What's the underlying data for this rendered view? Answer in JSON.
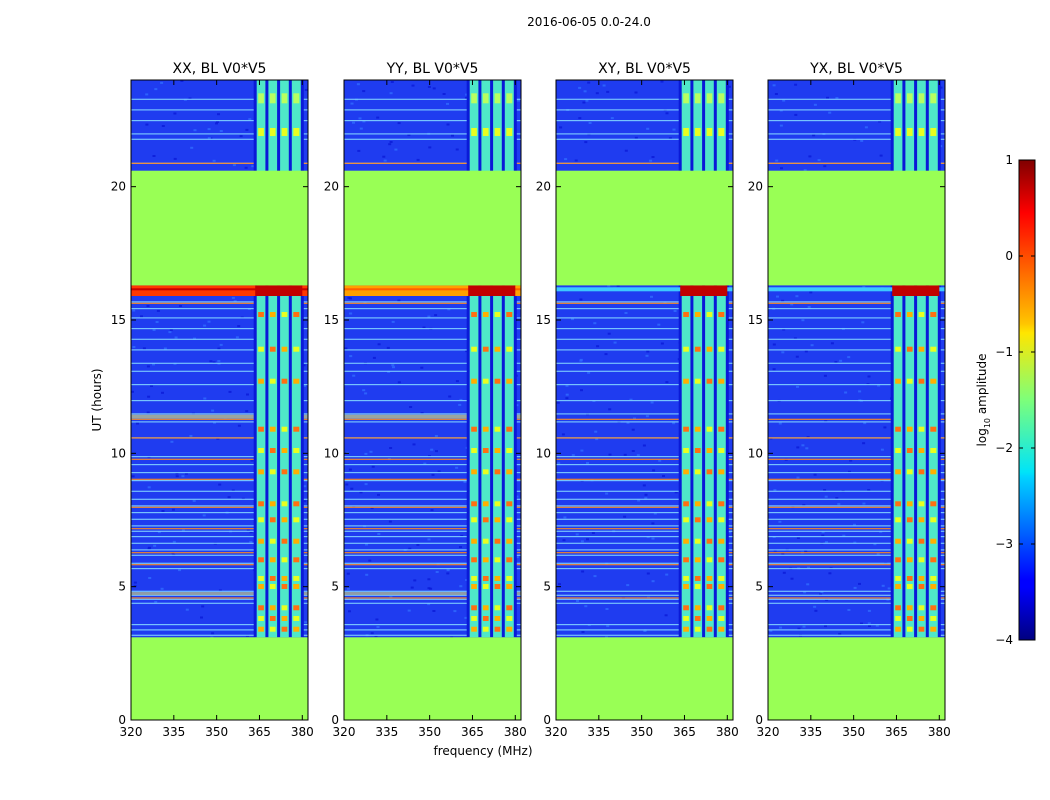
{
  "suptitle": "2016-06-05 0.0-24.0",
  "xlabel": "frequency (MHz)",
  "ylabel": "UT (hours)",
  "colorbar": {
    "label": "log",
    "label_sub": "10",
    "label_rest": " amplitude",
    "range": [
      -4,
      1
    ],
    "ticks": [
      "1",
      "0",
      "−1",
      "−2",
      "−3",
      "−4"
    ],
    "tick_values": [
      1,
      0,
      -1,
      -2,
      -3,
      -4
    ]
  },
  "colors": {
    "flagged_fill": "#99ff55",
    "background": "#1f3cf0",
    "axis": "#000000"
  },
  "chart_data": {
    "type": "heatmap",
    "panels": [
      {
        "title": "XX, BL V0*V5",
        "cross": false
      },
      {
        "title": "YY, BL V0*V5",
        "cross": false
      },
      {
        "title": "XY, BL V0*V5",
        "cross": true
      },
      {
        "title": "YX, BL V0*V5",
        "cross": true
      }
    ],
    "x_range": [
      320,
      382
    ],
    "y_range": [
      0,
      24
    ],
    "x_ticks": [
      320,
      335,
      350,
      365,
      380
    ],
    "x_tick_labels": [
      "320",
      "335",
      "350",
      "365",
      "380"
    ],
    "y_ticks": [
      0,
      5,
      10,
      15,
      20
    ],
    "y_tick_labels": [
      "0",
      "5",
      "10",
      "15",
      "20"
    ],
    "flagged_intervals_ut": [
      [
        0,
        3.1
      ],
      [
        16.3,
        20.6
      ]
    ],
    "rfi_band_mhz": [
      363.5,
      380
    ],
    "saturated_band_ut": [
      15.9,
      16.3
    ],
    "unit": "log10 amplitude"
  }
}
